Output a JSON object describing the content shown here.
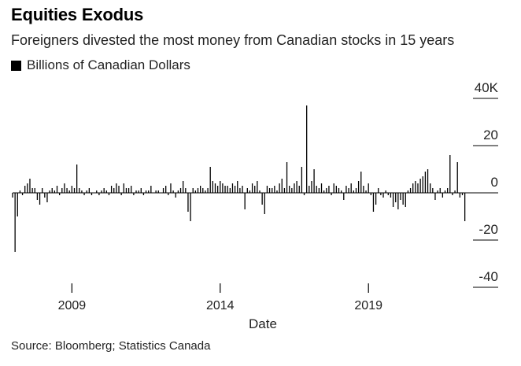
{
  "header": {
    "title": "Equities Exodus",
    "subtitle": "Foreigners divested the most money from Canadian stocks in 15 years"
  },
  "legend": {
    "label": "Billions of Canadian Dollars",
    "color": "#000000"
  },
  "footer": {
    "source": "Source: Bloomberg; Statistics Canada"
  },
  "chart_data": {
    "type": "bar",
    "title": "Equities Exodus",
    "subtitle": "Foreigners divested the most money from Canadian stocks in 15 years",
    "xlabel": "Date",
    "ylabel": "Billions of Canadian Dollars",
    "ylim": [
      -40,
      40
    ],
    "yticks": [
      {
        "value": 40,
        "label": "40K"
      },
      {
        "value": 20,
        "label": "20"
      },
      {
        "value": 0,
        "label": "0"
      },
      {
        "value": -20,
        "label": "-20"
      },
      {
        "value": -40,
        "label": "-40"
      }
    ],
    "xlim": [
      2007.0,
      2023.4
    ],
    "xticks": [
      {
        "value": 2009,
        "label": "2009"
      },
      {
        "value": 2014,
        "label": "2014"
      },
      {
        "value": 2019,
        "label": "2019"
      }
    ],
    "bar_color": "#000000",
    "x_start": 2007.0,
    "x_step": 0.08333,
    "series": [
      {
        "name": "Billions of Canadian Dollars",
        "values": [
          -2,
          -25,
          -10,
          1,
          -1,
          3,
          4,
          6,
          2,
          2,
          -3,
          -5,
          2,
          -2,
          -4,
          1,
          2,
          1,
          3,
          -1,
          2,
          4,
          2,
          1,
          3,
          2,
          12,
          2,
          1,
          -1,
          1,
          2,
          -1,
          0,
          1,
          -1,
          1,
          2,
          1,
          -1,
          3,
          2,
          4,
          3,
          -1,
          4,
          2,
          2,
          3,
          -1,
          1,
          1,
          2,
          -1,
          1,
          1,
          3,
          0,
          1,
          1,
          0,
          2,
          3,
          -1,
          4,
          1,
          -2,
          1,
          2,
          5,
          2,
          -8,
          -12,
          2,
          1,
          2,
          3,
          2,
          1,
          2,
          11,
          5,
          4,
          3,
          5,
          4,
          3,
          3,
          2,
          4,
          3,
          5,
          2,
          3,
          -7,
          2,
          1,
          4,
          3,
          5,
          1,
          -5,
          -9,
          3,
          2,
          2,
          3,
          1,
          4,
          6,
          2,
          13,
          3,
          2,
          4,
          5,
          3,
          11,
          -1,
          37,
          3,
          5,
          10,
          3,
          2,
          4,
          1,
          2,
          3,
          -1,
          4,
          3,
          2,
          1,
          -3,
          3,
          2,
          4,
          1,
          2,
          5,
          9,
          3,
          1,
          4,
          -1,
          -8,
          -5,
          2,
          -1,
          -2,
          1,
          -1,
          -2,
          -6,
          -4,
          -7,
          -3,
          -5,
          -6,
          1,
          2,
          4,
          5,
          4,
          6,
          7,
          9,
          10,
          4,
          2,
          -3,
          1,
          2,
          -2,
          1,
          2,
          16,
          -1,
          1,
          13,
          -2,
          -1,
          -12
        ]
      }
    ]
  }
}
